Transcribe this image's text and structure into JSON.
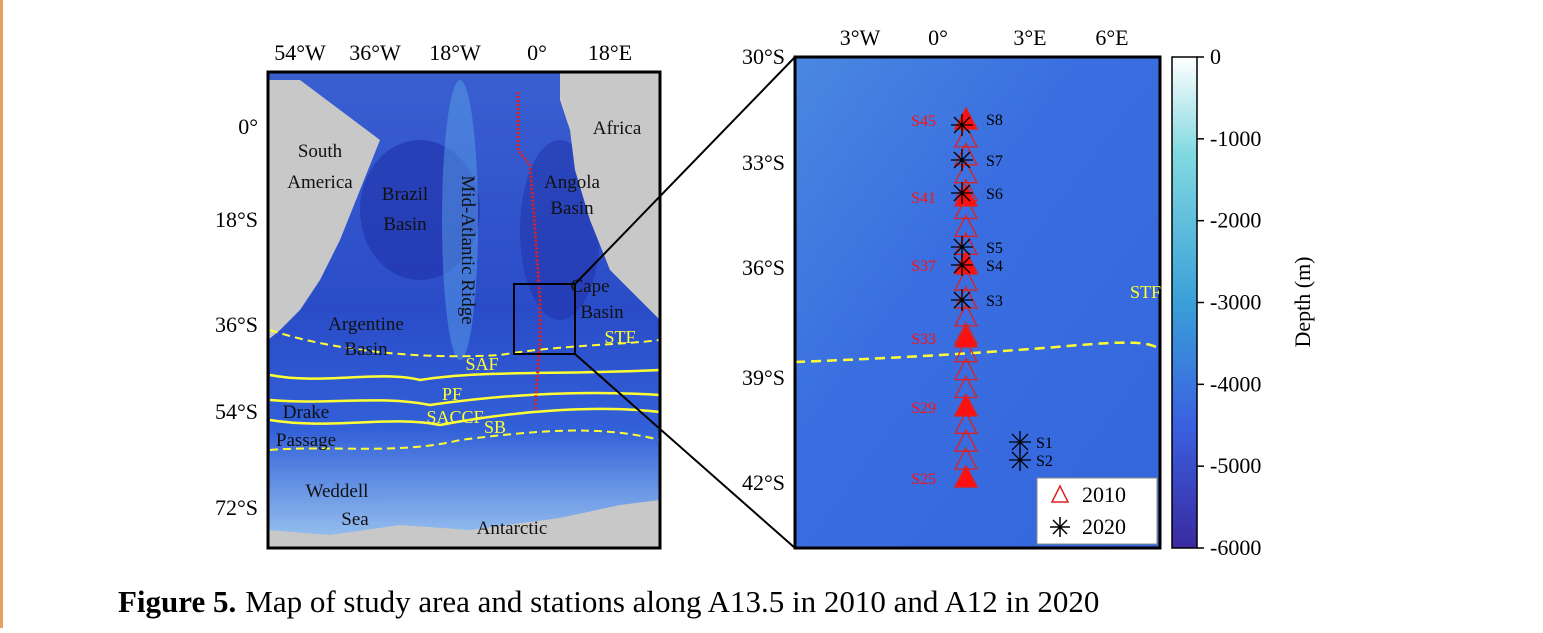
{
  "figure": {
    "left_map": {
      "xticks": [
        "54°W",
        "36°W",
        "18°W",
        "0°",
        "18°E"
      ],
      "yticks": [
        "0°",
        "18°S",
        "36°S",
        "54°S",
        "72°S"
      ],
      "places": [
        {
          "lines": [
            "South",
            "America"
          ]
        },
        {
          "lines": [
            "Brazil",
            "Basin"
          ]
        },
        {
          "lines": [
            "Mid-Atlantic Ridge"
          ]
        },
        {
          "lines": [
            "Angola",
            "Basin"
          ]
        },
        {
          "lines": [
            "Africa"
          ]
        },
        {
          "lines": [
            "Cape",
            "Basin"
          ]
        },
        {
          "lines": [
            "Argentine",
            "Basin"
          ]
        },
        {
          "lines": [
            "Drake",
            "Passage"
          ]
        },
        {
          "lines": [
            "Weddell",
            "Sea"
          ]
        },
        {
          "lines": [
            "Antarctic"
          ]
        }
      ],
      "fronts": [
        "STF",
        "SAF",
        "PF",
        "SACCF",
        "SB"
      ]
    },
    "right_map": {
      "xticks": [
        "3°W",
        "0°",
        "3°E",
        "6°E"
      ],
      "yticks": [
        "30°S",
        "33°S",
        "36°S",
        "39°S",
        "42°S"
      ],
      "stations_2010": [
        "S45",
        "S41",
        "S37",
        "S33",
        "S29",
        "S25"
      ],
      "stations_2020": [
        "S8",
        "S7",
        "S6",
        "S5",
        "S4",
        "S3",
        "S1",
        "S2"
      ],
      "front": "STF",
      "legend": [
        "2010",
        "2020"
      ]
    },
    "colorbar": {
      "label": "Depth (m)",
      "lim": [
        -6000,
        0
      ],
      "ticks": [
        0,
        -1000,
        -2000,
        -3000,
        -4000,
        -5000,
        -6000
      ]
    },
    "caption": {
      "label": "Figure 5.",
      "text": "Map of study area and stations along A13.5 in 2010 and A12 in 2020"
    }
  }
}
